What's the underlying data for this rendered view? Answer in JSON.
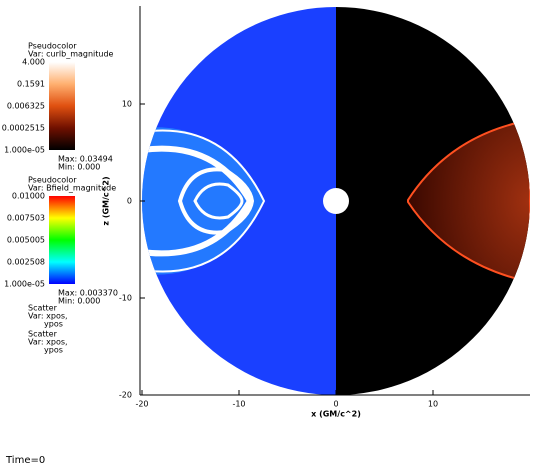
{
  "chart_data": {
    "type": "field",
    "xlabel": "x (GM/c^2)",
    "ylabel": "z (GM/c^2)",
    "xlim": [
      -20,
      20
    ],
    "ylim": [
      -20,
      20
    ],
    "xticks": [
      -20,
      -10,
      0,
      10
    ],
    "yticks": [
      -20,
      -10,
      0,
      10
    ],
    "legends": [
      {
        "title": "Pseudocolor",
        "var": "Var: curlb_magnitude",
        "labels": [
          "4.000",
          "0.1591",
          "0.006325",
          "0.0002515",
          "1.000e-05"
        ],
        "max": "Max: 0.03494",
        "min": "Min: 0.000"
      },
      {
        "title": "Pseudocolor",
        "var": "Var: Bfield_magnitude",
        "labels": [
          "0.01000",
          "0.007503",
          "0.005005",
          "0.002508",
          "1.000e-05"
        ],
        "max": "Max: 0.003370",
        "min": "Min: 0.000"
      }
    ],
    "scatter": [
      {
        "title": "Scatter",
        "var": "Var: xpos,",
        "var2": "ypos"
      },
      {
        "title": "Scatter",
        "var": "Var: xpos,",
        "var2": "ypos"
      }
    ],
    "time": "Time=0"
  }
}
